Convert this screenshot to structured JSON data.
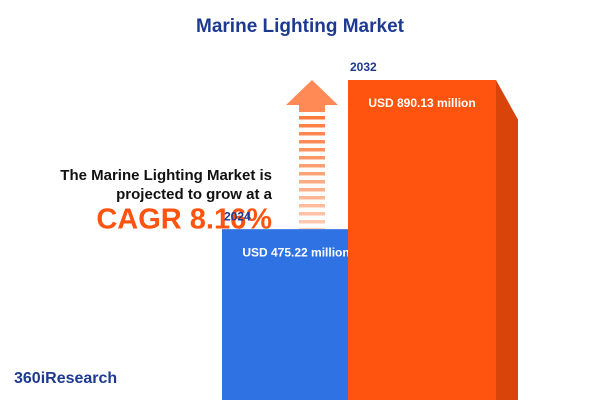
{
  "chart_data": {
    "type": "bar",
    "title": "Marine Lighting Market",
    "categories": [
      "2024",
      "2032"
    ],
    "values": [
      475.22,
      890.13
    ],
    "value_labels": [
      "USD 475.22 million",
      "USD 890.13 million"
    ],
    "colors": [
      "#2f72e4",
      "#ff5410"
    ],
    "side_colors": [
      "#1b3c93",
      "#d9440b"
    ],
    "annotation": [
      "The Marine Lighting Market is",
      "projected to grow at a"
    ],
    "highlight": "CAGR 8.16%",
    "source": "360iResearch"
  }
}
